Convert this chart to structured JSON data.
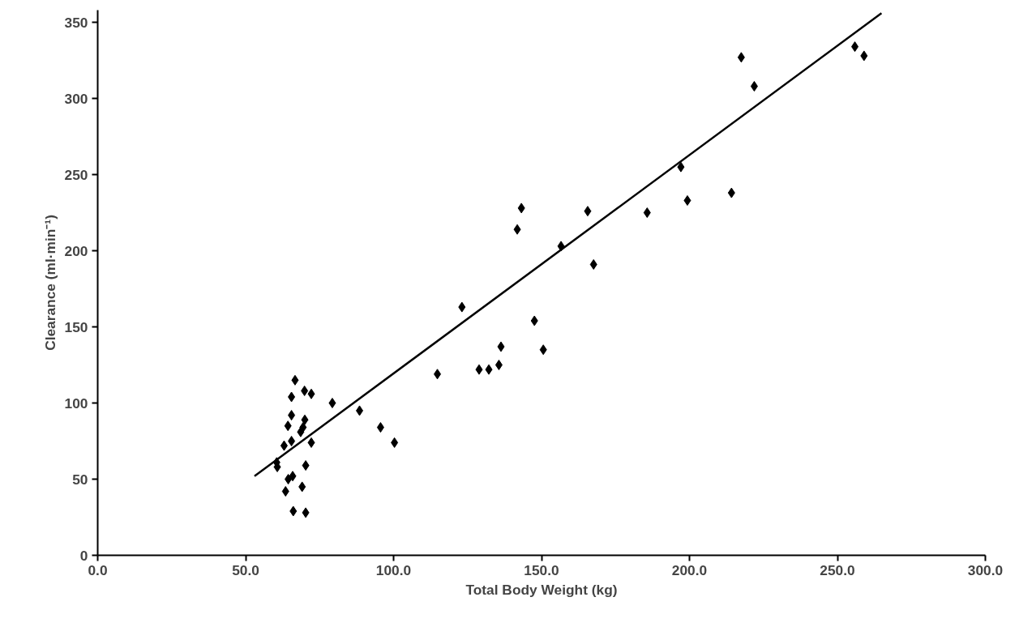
{
  "chart_data": {
    "type": "scatter",
    "xlabel": "Total Body Weight (kg)",
    "ylabel": "Clearance (ml·min⁻¹)",
    "xlim": [
      0,
      300
    ],
    "ylim": [
      0,
      358
    ],
    "xticks": [
      {
        "value": 0,
        "label": "0.0"
      },
      {
        "value": 50,
        "label": "50.0"
      },
      {
        "value": 100,
        "label": "100.0"
      },
      {
        "value": 150,
        "label": "150.0"
      },
      {
        "value": 200,
        "label": "200.0"
      },
      {
        "value": 250,
        "label": "250.0"
      },
      {
        "value": 300,
        "label": "300.0"
      }
    ],
    "yticks": [
      0,
      50,
      100,
      150,
      200,
      250,
      300,
      350
    ],
    "grid": false,
    "marker": "diamond",
    "series": [
      {
        "color": "#000000",
        "x": [
          66.7,
          69.9,
          72.2,
          65.5,
          79.3,
          88.5,
          65.5,
          70.0,
          64.3,
          95.6,
          69.4,
          68.6,
          65.5,
          63.0,
          72.2,
          100.3,
          60.5,
          60.7,
          70.3,
          65.9,
          64.4,
          69.1,
          63.5,
          66.1,
          70.3,
          143.2,
          165.6,
          141.8,
          156.6,
          167.6,
          123.1,
          147.6,
          136.3,
          150.6,
          135.6,
          128.9,
          132.2,
          114.8,
          217.5,
          221.9,
          255.9,
          259.0,
          197.1,
          214.2,
          199.3,
          185.7
        ],
        "values": [
          115,
          108,
          106,
          104,
          100,
          95,
          92,
          89,
          85,
          84,
          84,
          81,
          75,
          72,
          74,
          74,
          61,
          58,
          59,
          52,
          50,
          45,
          42,
          29,
          28,
          228,
          226,
          214,
          203,
          191,
          163,
          154,
          137,
          135,
          125,
          122,
          122,
          119,
          327,
          308,
          334,
          328,
          255,
          238,
          233,
          225
        ]
      },
      {
        "type": "line",
        "marker": "none",
        "color": "#000000",
        "line_style": "solid",
        "x": [
          53.0,
          264.9
        ],
        "values": [
          52,
          356
        ]
      }
    ]
  }
}
